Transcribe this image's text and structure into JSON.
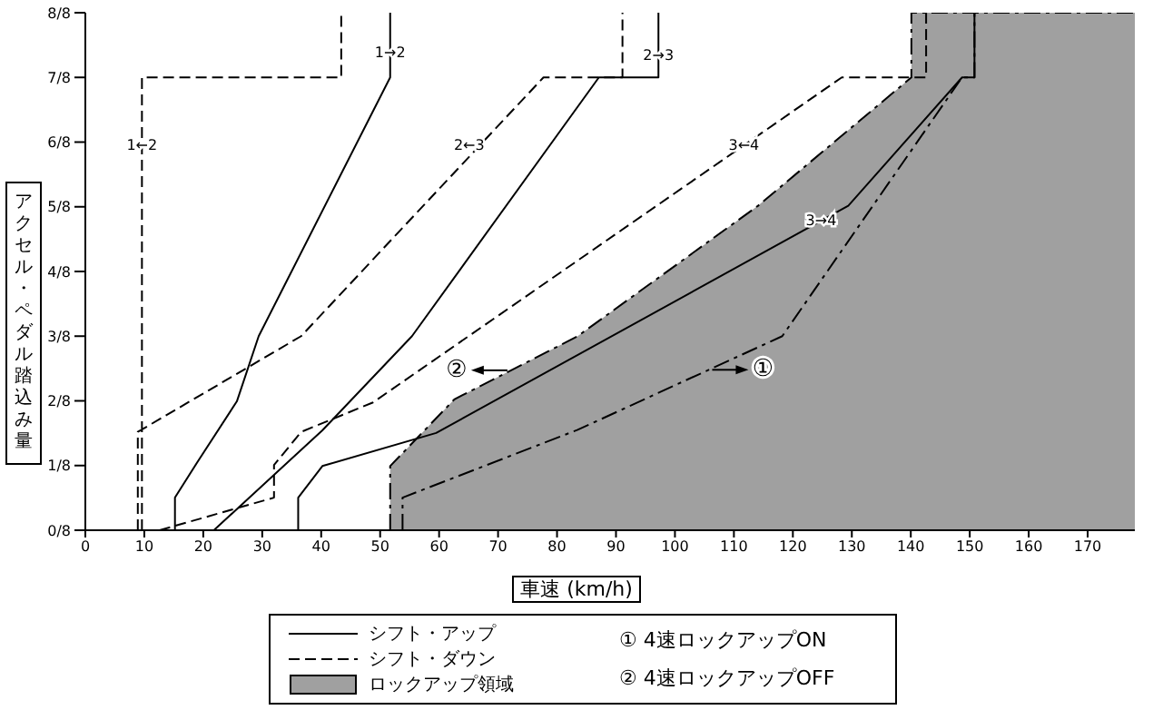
{
  "chart_data": {
    "type": "line",
    "xlabel": "車速 (km/h)",
    "ylabel": "アクセル・ペダル踏込み量",
    "xlim": [
      0,
      178
    ],
    "xticks": [
      0,
      10,
      20,
      30,
      40,
      50,
      60,
      70,
      80,
      90,
      100,
      110,
      120,
      130,
      140,
      150,
      160,
      170
    ],
    "ylim": [
      0,
      1
    ],
    "yticks": [
      {
        "value": 0,
        "label": "0/8"
      },
      {
        "value": 0.125,
        "label": "1/8"
      },
      {
        "value": 0.25,
        "label": "2/8"
      },
      {
        "value": 0.375,
        "label": "3/8"
      },
      {
        "value": 0.5,
        "label": "4/8"
      },
      {
        "value": 0.625,
        "label": "5/8"
      },
      {
        "value": 0.75,
        "label": "6/8"
      },
      {
        "value": 0.875,
        "label": "7/8"
      },
      {
        "value": 1,
        "label": "8/8"
      }
    ],
    "legend": "bottom",
    "series": [
      {
        "name": "シフト・アップ",
        "line_style": "solid",
        "color": "#000000",
        "x": [
          15.2,
          15.2,
          19.3,
          25.7,
          29.4,
          51.7,
          51.7,
          null,
          21.8,
          40.2,
          55.4,
          87.1,
          97.2,
          97.2,
          null,
          36.1,
          36.1,
          40.2,
          59.5,
          129.4,
          148.7,
          150.8,
          150.8
        ],
        "values": [
          0,
          0.063,
          0.137,
          0.249,
          0.375,
          0.875,
          1,
          null,
          0,
          0.193,
          0.375,
          0.875,
          0.875,
          1,
          null,
          0,
          0.063,
          0.124,
          0.188,
          0.627,
          0.875,
          0.875,
          1
        ]
      },
      {
        "name": "シフト・ダウン",
        "line_style": "dashed",
        "color": "#000000",
        "x": [
          9.6,
          9.6,
          43.4,
          43.4,
          null,
          8.9,
          8.9,
          36.6,
          77.7,
          91.1,
          91.1,
          null,
          12.6,
          32.0,
          32.0,
          36.6,
          48.8,
          128.3,
          142.6,
          142.6
        ],
        "values": [
          0,
          0.875,
          0.875,
          1,
          null,
          0,
          0.19,
          0.375,
          0.875,
          0.875,
          1,
          null,
          0,
          0.063,
          0.126,
          0.19,
          0.247,
          0.875,
          0.875,
          1
        ]
      },
      {
        "name": "ロックアップ領域",
        "type": "area",
        "line_style": "dashdot",
        "color": "#a0a0a0",
        "x": [
          51.7,
          51.7,
          62.6,
          83.5,
          114.1,
          140.1,
          140.1,
          178
        ],
        "values": [
          0,
          0.124,
          0.253,
          0.375,
          0.627,
          0.875,
          1,
          1
        ]
      },
      {
        "line_style": "dashdot",
        "color": "#000000",
        "x": [
          53.8,
          53.8,
          83.5,
          118.2,
          148.7,
          150.8,
          150.8
        ],
        "values": [
          0,
          0.063,
          0.194,
          0.375,
          0.875,
          0.875,
          1
        ]
      }
    ],
    "annotations": [
      {
        "text": "1→2",
        "x": 51.7,
        "y": 0.922
      },
      {
        "text": "1←2",
        "x": 9.6,
        "y": 0.744
      },
      {
        "text": "2→3",
        "x": 97.2,
        "y": 0.917
      },
      {
        "text": "2←3",
        "x": 65.1,
        "y": 0.744
      },
      {
        "text": "3←4",
        "x": 111.7,
        "y": 0.744
      },
      {
        "text": "3→4",
        "x": 124.8,
        "y": 0.598
      },
      {
        "text": "①",
        "x": 105.7,
        "y": 0.31
      },
      {
        "text": "②",
        "x": 72.2,
        "y": 0.309
      },
      "① 4速ロックアップON",
      "② 4速ロックアップOFF"
    ]
  }
}
